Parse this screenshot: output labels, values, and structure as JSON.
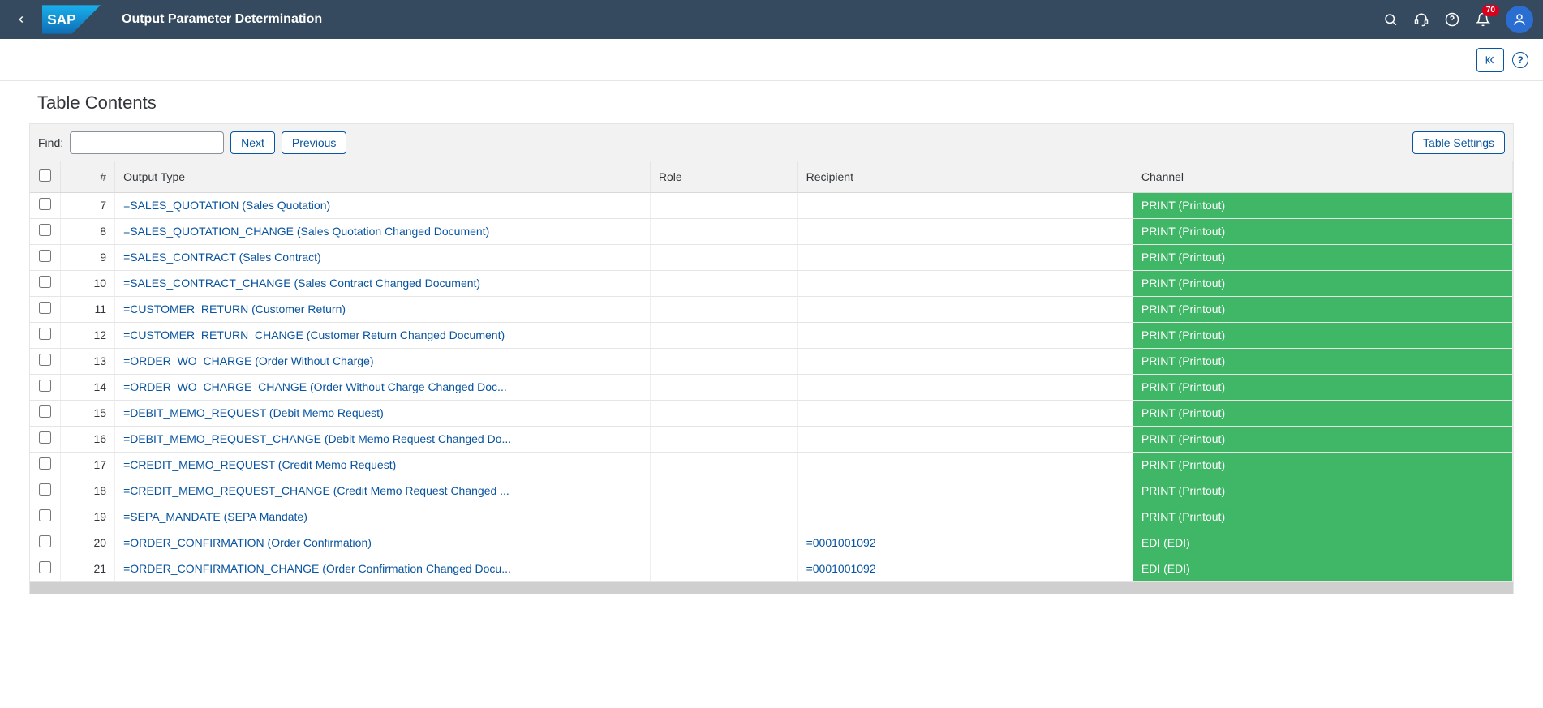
{
  "shell": {
    "app_title": "Output Parameter Determination",
    "notification_count": "70"
  },
  "subbar": {
    "exit_tooltip": "Exit",
    "help_symbol": "?"
  },
  "section": {
    "title": "Table Contents"
  },
  "toolbar": {
    "find_label": "Find:",
    "find_value": "",
    "next_label": "Next",
    "previous_label": "Previous",
    "table_settings_label": "Table Settings"
  },
  "columns": {
    "num": "#",
    "output_type": "Output Type",
    "role": "Role",
    "recipient": "Recipient",
    "channel": "Channel"
  },
  "colors": {
    "header_bg": "#354a5f",
    "link": "#0854a0",
    "channel_bg": "#3fb767",
    "badge_bg": "#d9001b"
  },
  "rows": [
    {
      "num": "7",
      "output_type": "=SALES_QUOTATION (Sales Quotation)",
      "role": "",
      "recipient": "",
      "channel": "PRINT (Printout)"
    },
    {
      "num": "8",
      "output_type": "=SALES_QUOTATION_CHANGE (Sales Quotation Changed Document)",
      "role": "",
      "recipient": "",
      "channel": "PRINT (Printout)"
    },
    {
      "num": "9",
      "output_type": "=SALES_CONTRACT (Sales Contract)",
      "role": "",
      "recipient": "",
      "channel": "PRINT (Printout)"
    },
    {
      "num": "10",
      "output_type": "=SALES_CONTRACT_CHANGE (Sales Contract Changed Document)",
      "role": "",
      "recipient": "",
      "channel": "PRINT (Printout)"
    },
    {
      "num": "11",
      "output_type": "=CUSTOMER_RETURN (Customer Return)",
      "role": "",
      "recipient": "",
      "channel": "PRINT (Printout)"
    },
    {
      "num": "12",
      "output_type": "=CUSTOMER_RETURN_CHANGE (Customer Return Changed Document)",
      "role": "",
      "recipient": "",
      "channel": "PRINT (Printout)"
    },
    {
      "num": "13",
      "output_type": "=ORDER_WO_CHARGE (Order Without Charge)",
      "role": "",
      "recipient": "",
      "channel": "PRINT (Printout)"
    },
    {
      "num": "14",
      "output_type": "=ORDER_WO_CHARGE_CHANGE (Order Without Charge Changed Doc...",
      "role": "",
      "recipient": "",
      "channel": "PRINT (Printout)"
    },
    {
      "num": "15",
      "output_type": "=DEBIT_MEMO_REQUEST (Debit Memo Request)",
      "role": "",
      "recipient": "",
      "channel": "PRINT (Printout)"
    },
    {
      "num": "16",
      "output_type": "=DEBIT_MEMO_REQUEST_CHANGE (Debit Memo Request Changed Do...",
      "role": "",
      "recipient": "",
      "channel": "PRINT (Printout)"
    },
    {
      "num": "17",
      "output_type": "=CREDIT_MEMO_REQUEST (Credit Memo Request)",
      "role": "",
      "recipient": "",
      "channel": "PRINT (Printout)"
    },
    {
      "num": "18",
      "output_type": "=CREDIT_MEMO_REQUEST_CHANGE (Credit Memo Request Changed ...",
      "role": "",
      "recipient": "",
      "channel": "PRINT (Printout)"
    },
    {
      "num": "19",
      "output_type": "=SEPA_MANDATE (SEPA Mandate)",
      "role": "",
      "recipient": "",
      "channel": "PRINT (Printout)"
    },
    {
      "num": "20",
      "output_type": "=ORDER_CONFIRMATION (Order Confirmation)",
      "role": "",
      "recipient": "=0001001092",
      "channel": "EDI (EDI)"
    },
    {
      "num": "21",
      "output_type": "=ORDER_CONFIRMATION_CHANGE (Order Confirmation Changed Docu...",
      "role": "",
      "recipient": "=0001001092",
      "channel": "EDI (EDI)"
    }
  ]
}
